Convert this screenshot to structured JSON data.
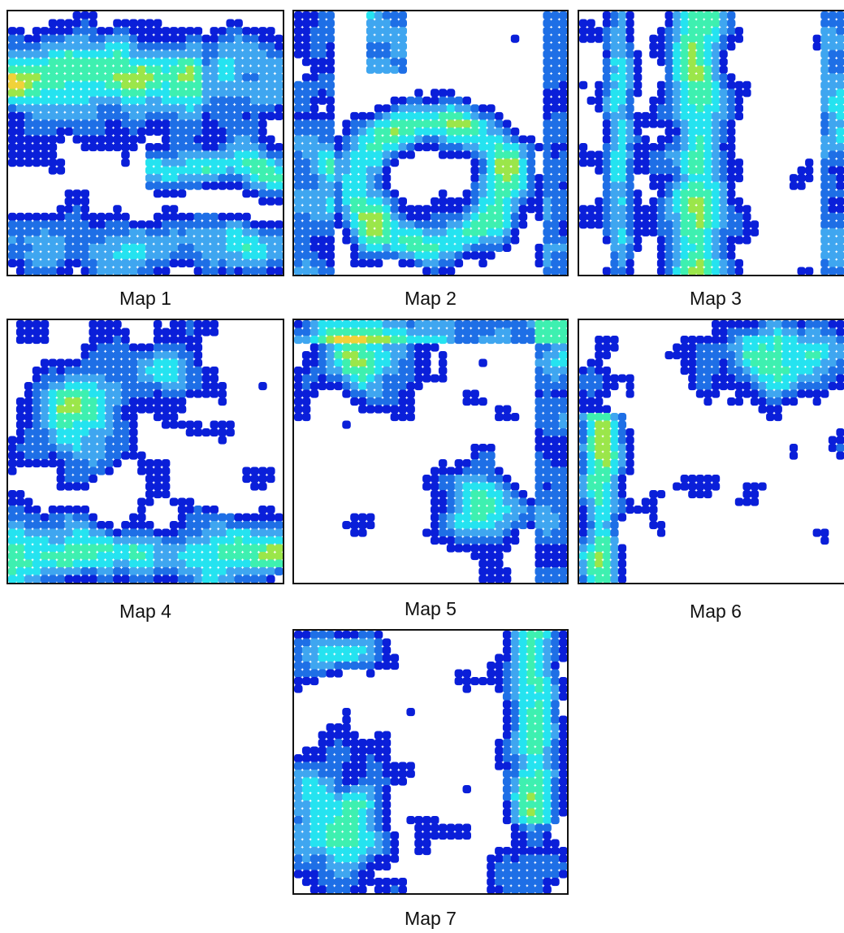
{
  "figure": {
    "maps": [
      {
        "id": "map-1",
        "label": "Map 1",
        "seed": 11,
        "density": 0.42,
        "bias": "middle-band"
      },
      {
        "id": "map-2",
        "label": "Map 2",
        "seed": 23,
        "density": 0.4,
        "bias": "arch"
      },
      {
        "id": "map-3",
        "label": "Map 3",
        "seed": 37,
        "density": 0.45,
        "bias": "vertical"
      },
      {
        "id": "map-4",
        "label": "Map 4",
        "seed": 41,
        "density": 0.45,
        "bias": "corners"
      },
      {
        "id": "map-5",
        "label": "Map 5",
        "seed": 53,
        "density": 0.4,
        "bias": "top-and-center"
      },
      {
        "id": "map-6",
        "label": "Map 6",
        "seed": 67,
        "density": 0.42,
        "bias": "top-right-left"
      },
      {
        "id": "map-7",
        "label": "Map 7",
        "seed": 79,
        "density": 0.42,
        "bias": "left-right-edges"
      }
    ],
    "colormap": [
      "#0a1fd9",
      "#1e6fe6",
      "#3fa6f0",
      "#25e3f0",
      "#3ef0b0",
      "#9be64a",
      "#f0d23a",
      "#f07a2a",
      "#e8261c"
    ],
    "background_color": "#ffffff",
    "frame_color": "#111111"
  }
}
